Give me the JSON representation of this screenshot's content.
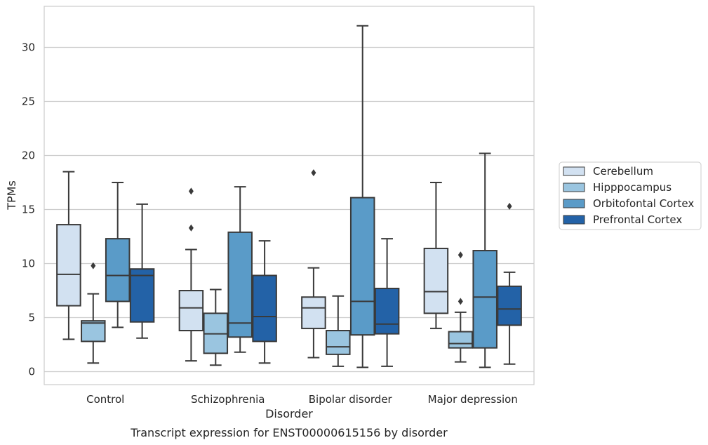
{
  "caption": "Transcript expression for ENST00000615156 by disorder",
  "chart_data": {
    "type": "box",
    "title": "",
    "xlabel": "Disorder",
    "ylabel": "TPMs",
    "ylim": [
      -1.2,
      33.8
    ],
    "yticks": [
      0,
      5,
      10,
      15,
      20,
      25,
      30
    ],
    "grid": true,
    "legend_position": "right",
    "categories": [
      "Control",
      "Schizophrenia",
      "Bipolar disorder",
      "Major depression"
    ],
    "series": [
      {
        "name": "Cerebellum",
        "color": "#d2e1f1",
        "boxes": [
          {
            "min": 3.0,
            "q1": 6.1,
            "median": 9.0,
            "q3": 13.6,
            "max": 18.5,
            "outliers": []
          },
          {
            "min": 1.0,
            "q1": 3.8,
            "median": 5.9,
            "q3": 7.5,
            "max": 11.3,
            "outliers": [
              13.3,
              16.7
            ]
          },
          {
            "min": 1.3,
            "q1": 4.0,
            "median": 5.9,
            "q3": 6.9,
            "max": 9.6,
            "outliers": [
              18.4
            ]
          },
          {
            "min": 4.0,
            "q1": 5.4,
            "median": 7.4,
            "q3": 11.4,
            "max": 17.5,
            "outliers": []
          }
        ]
      },
      {
        "name": "Hipppocampus",
        "color": "#9ac5e0",
        "boxes": [
          {
            "min": 0.8,
            "q1": 2.8,
            "median": 4.5,
            "q3": 4.7,
            "max": 7.2,
            "outliers": [
              9.8
            ]
          },
          {
            "min": 0.6,
            "q1": 1.7,
            "median": 3.5,
            "q3": 5.4,
            "max": 7.6,
            "outliers": []
          },
          {
            "min": 0.5,
            "q1": 1.6,
            "median": 2.3,
            "q3": 3.8,
            "max": 7.0,
            "outliers": []
          },
          {
            "min": 0.9,
            "q1": 2.2,
            "median": 2.6,
            "q3": 3.7,
            "max": 5.5,
            "outliers": [
              6.5,
              10.8
            ]
          }
        ]
      },
      {
        "name": "Orbitofontal Cortex",
        "color": "#5a9bc8",
        "boxes": [
          {
            "min": 4.1,
            "q1": 6.5,
            "median": 8.9,
            "q3": 12.3,
            "max": 17.5,
            "outliers": []
          },
          {
            "min": 1.8,
            "q1": 3.2,
            "median": 4.5,
            "q3": 12.9,
            "max": 17.1,
            "outliers": []
          },
          {
            "min": 0.4,
            "q1": 3.4,
            "median": 6.5,
            "q3": 16.1,
            "max": 32.0,
            "outliers": []
          },
          {
            "min": 0.4,
            "q1": 2.2,
            "median": 6.9,
            "q3": 11.2,
            "max": 20.2,
            "outliers": []
          }
        ]
      },
      {
        "name": "Prefrontal Cortex",
        "color": "#2362a7",
        "boxes": [
          {
            "min": 3.1,
            "q1": 4.6,
            "median": 8.9,
            "q3": 9.5,
            "max": 15.5,
            "outliers": []
          },
          {
            "min": 0.8,
            "q1": 2.8,
            "median": 5.1,
            "q3": 8.9,
            "max": 12.1,
            "outliers": []
          },
          {
            "min": 0.5,
            "q1": 3.5,
            "median": 4.4,
            "q3": 7.7,
            "max": 12.3,
            "outliers": []
          },
          {
            "min": 0.7,
            "q1": 4.3,
            "median": 5.8,
            "q3": 7.9,
            "max": 9.2,
            "outliers": [
              15.3
            ]
          }
        ]
      }
    ]
  }
}
